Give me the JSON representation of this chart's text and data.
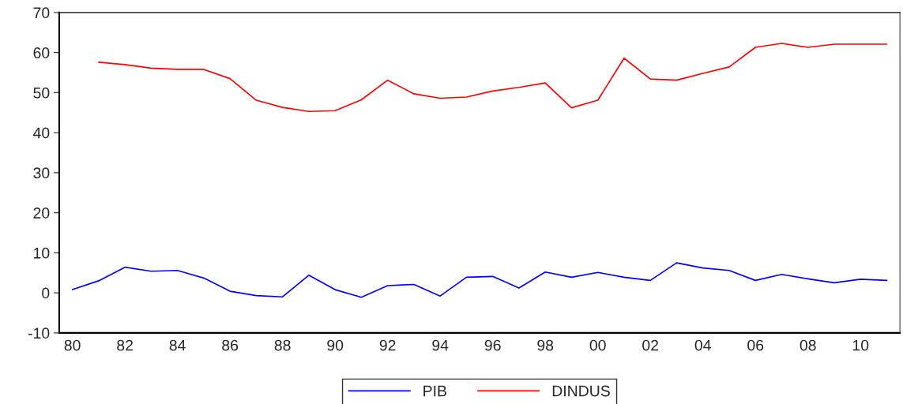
{
  "chart_data": {
    "type": "line",
    "categories": [
      "80",
      null,
      "82",
      null,
      "84",
      null,
      "86",
      null,
      "88",
      null,
      "90",
      null,
      "92",
      null,
      "94",
      null,
      "96",
      null,
      "98",
      null,
      "00",
      null,
      "02",
      null,
      "04",
      null,
      "06",
      null,
      "08",
      null,
      "10",
      null
    ],
    "series": [
      {
        "name": "PIB",
        "color": "#0000ff",
        "values": [
          0.8,
          3.0,
          6.4,
          5.4,
          5.6,
          3.7,
          0.4,
          -0.7,
          -1.0,
          4.4,
          0.8,
          -1.1,
          1.8,
          2.1,
          -0.8,
          3.9,
          4.1,
          1.2,
          5.2,
          3.9,
          5.1,
          3.9,
          3.1,
          7.5,
          6.2,
          5.6,
          3.1,
          4.6,
          3.5,
          2.5,
          3.4,
          3.1
        ]
      },
      {
        "name": "DINDUS",
        "color": "#ff0000",
        "values": [
          null,
          57.6,
          57.0,
          56.1,
          55.8,
          55.8,
          53.5,
          48.1,
          46.3,
          45.3,
          45.5,
          48.2,
          53.1,
          49.7,
          48.6,
          48.9,
          50.4,
          51.3,
          52.4,
          46.2,
          48.1,
          58.6,
          53.4,
          53.1,
          54.8,
          56.4,
          61.3,
          62.3,
          61.3,
          62.1,
          62.1,
          62.1
        ]
      }
    ],
    "ylim": [
      -10,
      70
    ],
    "yticks": [
      -10,
      0,
      10,
      20,
      30,
      40,
      50,
      60,
      70
    ],
    "grid": false,
    "legend": "bottom",
    "line_style": "solid",
    "marker": "none"
  }
}
